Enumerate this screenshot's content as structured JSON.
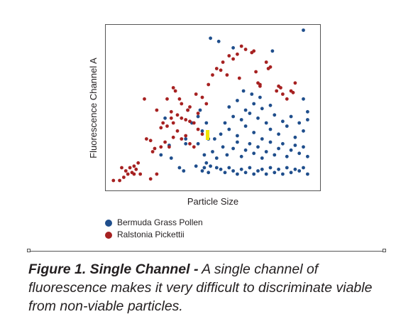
{
  "chart_data": {
    "type": "scatter",
    "xlabel": "Particle Size",
    "ylabel": "Fluorescence Channel A",
    "xlim": [
      0,
      100
    ],
    "ylim": [
      0,
      100
    ],
    "grid": false,
    "legend_placement": "bottom-left",
    "series": [
      {
        "name": "Bermuda Grass Pollen",
        "color": "#1f4e8c",
        "points": [
          [
            49,
            93
          ],
          [
            53,
            91
          ],
          [
            94,
            98
          ],
          [
            60,
            87
          ],
          [
            79,
            85
          ],
          [
            27,
            43
          ],
          [
            43,
            44
          ],
          [
            38,
            48
          ],
          [
            40,
            40
          ],
          [
            45,
            35
          ],
          [
            29,
            26
          ],
          [
            25,
            20
          ],
          [
            37,
            30
          ],
          [
            37,
            27
          ],
          [
            30,
            18
          ],
          [
            34,
            12
          ],
          [
            36,
            10
          ],
          [
            42,
            13
          ],
          [
            46,
            12
          ],
          [
            47,
            15
          ],
          [
            49,
            13
          ],
          [
            48,
            9
          ],
          [
            52,
            12
          ],
          [
            54,
            11
          ],
          [
            56,
            9
          ],
          [
            58,
            12
          ],
          [
            60,
            10
          ],
          [
            62,
            8
          ],
          [
            64,
            11
          ],
          [
            66,
            9
          ],
          [
            68,
            12
          ],
          [
            70,
            8
          ],
          [
            72,
            10
          ],
          [
            74,
            11
          ],
          [
            76,
            8
          ],
          [
            78,
            12
          ],
          [
            80,
            9
          ],
          [
            82,
            11
          ],
          [
            84,
            8
          ],
          [
            86,
            12
          ],
          [
            88,
            9
          ],
          [
            90,
            11
          ],
          [
            92,
            10
          ],
          [
            94,
            12
          ],
          [
            96,
            8
          ],
          [
            46,
            20
          ],
          [
            50,
            22
          ],
          [
            52,
            18
          ],
          [
            55,
            25
          ],
          [
            57,
            20
          ],
          [
            60,
            24
          ],
          [
            62,
            28
          ],
          [
            64,
            19
          ],
          [
            66,
            23
          ],
          [
            68,
            27
          ],
          [
            70,
            21
          ],
          [
            72,
            25
          ],
          [
            74,
            18
          ],
          [
            76,
            22
          ],
          [
            78,
            28
          ],
          [
            80,
            20
          ],
          [
            82,
            24
          ],
          [
            84,
            27
          ],
          [
            86,
            19
          ],
          [
            88,
            23
          ],
          [
            90,
            26
          ],
          [
            92,
            21
          ],
          [
            94,
            25
          ],
          [
            96,
            19
          ],
          [
            51,
            30
          ],
          [
            54,
            33
          ],
          [
            58,
            36
          ],
          [
            62,
            32
          ],
          [
            66,
            38
          ],
          [
            70,
            34
          ],
          [
            74,
            30
          ],
          [
            78,
            36
          ],
          [
            82,
            33
          ],
          [
            86,
            38
          ],
          [
            90,
            31
          ],
          [
            94,
            35
          ],
          [
            56,
            40
          ],
          [
            60,
            44
          ],
          [
            64,
            42
          ],
          [
            68,
            46
          ],
          [
            72,
            43
          ],
          [
            76,
            40
          ],
          [
            80,
            45
          ],
          [
            84,
            41
          ],
          [
            88,
            44
          ],
          [
            92,
            40
          ],
          [
            96,
            42
          ],
          [
            58,
            50
          ],
          [
            62,
            54
          ],
          [
            66,
            48
          ],
          [
            70,
            52
          ],
          [
            74,
            49
          ],
          [
            78,
            51
          ],
          [
            96,
            47
          ],
          [
            94,
            55
          ],
          [
            65,
            60
          ],
          [
            69,
            58
          ],
          [
            73,
            56
          ],
          [
            44,
            48
          ],
          [
            47,
            40
          ],
          [
            43,
            27
          ],
          [
            48,
            30
          ],
          [
            45,
            10
          ]
        ]
      },
      {
        "name": "Ralstonia Pickettii",
        "color": "#a62121",
        "points": [
          [
            2,
            4
          ],
          [
            5,
            4
          ],
          [
            7,
            6
          ],
          [
            8,
            10
          ],
          [
            9,
            8
          ],
          [
            10,
            12
          ],
          [
            11,
            9
          ],
          [
            12,
            13
          ],
          [
            13,
            11
          ],
          [
            14,
            15
          ],
          [
            6,
            12
          ],
          [
            12,
            8
          ],
          [
            15,
            8
          ],
          [
            18,
            30
          ],
          [
            20,
            29
          ],
          [
            22,
            24
          ],
          [
            21,
            22
          ],
          [
            20,
            5
          ],
          [
            23,
            8
          ],
          [
            25,
            25
          ],
          [
            27,
            28
          ],
          [
            29,
            25
          ],
          [
            31,
            31
          ],
          [
            33,
            35
          ],
          [
            35,
            30
          ],
          [
            37,
            32
          ],
          [
            39,
            27
          ],
          [
            41,
            25
          ],
          [
            41,
            40
          ],
          [
            43,
            36
          ],
          [
            45,
            33
          ],
          [
            30,
            47
          ],
          [
            31,
            40
          ],
          [
            33,
            45
          ],
          [
            35,
            43
          ],
          [
            37,
            42
          ],
          [
            39,
            41
          ],
          [
            43,
            46
          ],
          [
            25,
            37
          ],
          [
            26,
            40
          ],
          [
            28,
            38
          ],
          [
            30,
            43
          ],
          [
            17,
            55
          ],
          [
            23,
            48
          ],
          [
            28,
            55
          ],
          [
            31,
            62
          ],
          [
            32,
            60
          ],
          [
            34,
            55
          ],
          [
            35,
            52
          ],
          [
            38,
            48
          ],
          [
            39,
            50
          ],
          [
            42,
            58
          ],
          [
            45,
            56
          ],
          [
            47,
            52
          ],
          [
            48,
            64
          ],
          [
            50,
            70
          ],
          [
            52,
            74
          ],
          [
            54,
            73
          ],
          [
            55,
            78
          ],
          [
            57,
            70
          ],
          [
            58,
            82
          ],
          [
            60,
            80
          ],
          [
            62,
            83
          ],
          [
            63,
            68
          ],
          [
            64,
            88
          ],
          [
            66,
            86
          ],
          [
            69,
            84
          ],
          [
            70,
            85
          ],
          [
            71,
            72
          ],
          [
            72,
            65
          ],
          [
            73,
            64
          ],
          [
            76,
            78
          ],
          [
            77,
            74
          ],
          [
            78,
            75
          ],
          [
            81,
            60
          ],
          [
            82,
            63
          ],
          [
            83,
            62
          ],
          [
            84,
            58
          ],
          [
            86,
            55
          ],
          [
            88,
            60
          ],
          [
            89,
            59
          ],
          [
            90,
            65
          ],
          [
            73,
            63
          ]
        ]
      }
    ],
    "highlight_color": "#f2e600"
  },
  "legend": {
    "items": [
      {
        "label": "Bermuda Grass Pollen",
        "color": "#1f4e8c"
      },
      {
        "label": "Ralstonia Pickettii",
        "color": "#a62121"
      }
    ]
  },
  "caption": {
    "bold": "Figure 1. Single Channel -",
    "text": " A single channel of fluorescence makes it very difficult to discriminate viable from non-viable particles."
  }
}
